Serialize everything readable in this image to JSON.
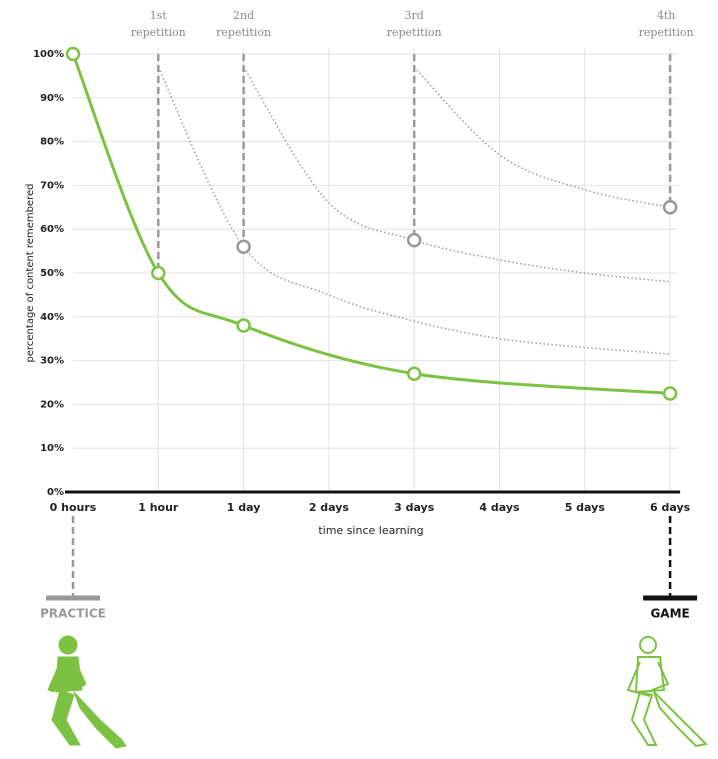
{
  "chart_data": {
    "type": "line",
    "xlabel": "time since learning",
    "ylabel": "percentage of content remembered",
    "categories": [
      "0 hours",
      "1 hour",
      "1 day",
      "2 days",
      "3 days",
      "4 days",
      "5 days",
      "6 days"
    ],
    "ylim": [
      0,
      100
    ],
    "yticks": [
      {
        "value": 0,
        "label": "0%"
      },
      {
        "value": 10,
        "label": "10%"
      },
      {
        "value": 20,
        "label": "20%"
      },
      {
        "value": 30,
        "label": "30%"
      },
      {
        "value": 40,
        "label": "40%"
      },
      {
        "value": 50,
        "label": "50%"
      },
      {
        "value": 60,
        "label": "60%"
      },
      {
        "value": 70,
        "label": "70%"
      },
      {
        "value": 80,
        "label": "80%"
      },
      {
        "value": 90,
        "label": "90%"
      },
      {
        "value": 100,
        "label": "100%"
      }
    ],
    "grid": true,
    "series": [
      {
        "color": "#7cc242",
        "style": "solid",
        "x": [
          0,
          1,
          2,
          4,
          7
        ],
        "values": [
          100,
          50,
          38,
          27,
          22.5
        ],
        "markers": [
          0,
          1,
          2,
          4,
          7
        ]
      },
      {
        "color": "#999999",
        "style": "dotted",
        "x": [
          1,
          2,
          3,
          4,
          5,
          6,
          7
        ],
        "values": [
          97,
          56,
          45,
          39,
          35,
          33,
          31.5
        ],
        "markers": [
          2
        ]
      },
      {
        "color": "#999999",
        "style": "dotted",
        "x": [
          2,
          3,
          4,
          5,
          6,
          7
        ],
        "values": [
          97,
          66,
          57.5,
          53,
          50,
          48
        ],
        "markers": [
          4
        ]
      },
      {
        "color": "#999999",
        "style": "dotted",
        "x": [
          4,
          5,
          6,
          7
        ],
        "values": [
          97,
          77,
          69,
          65
        ],
        "markers": [
          7
        ]
      }
    ],
    "annotations": [
      {
        "x": 1,
        "lines": [
          "1st",
          "repetition"
        ]
      },
      {
        "x": 2,
        "lines": [
          "2nd",
          "repetition"
        ]
      },
      {
        "x": 4,
        "lines": [
          "3rd",
          "repetition"
        ]
      },
      {
        "x": 7,
        "lines": [
          "4th",
          "repetition"
        ]
      }
    ],
    "bottom_labels": [
      {
        "x": 0,
        "text": "PRACTICE",
        "color": "#999999"
      },
      {
        "x": 7,
        "text": "GAME",
        "color": "#111111"
      }
    ]
  }
}
